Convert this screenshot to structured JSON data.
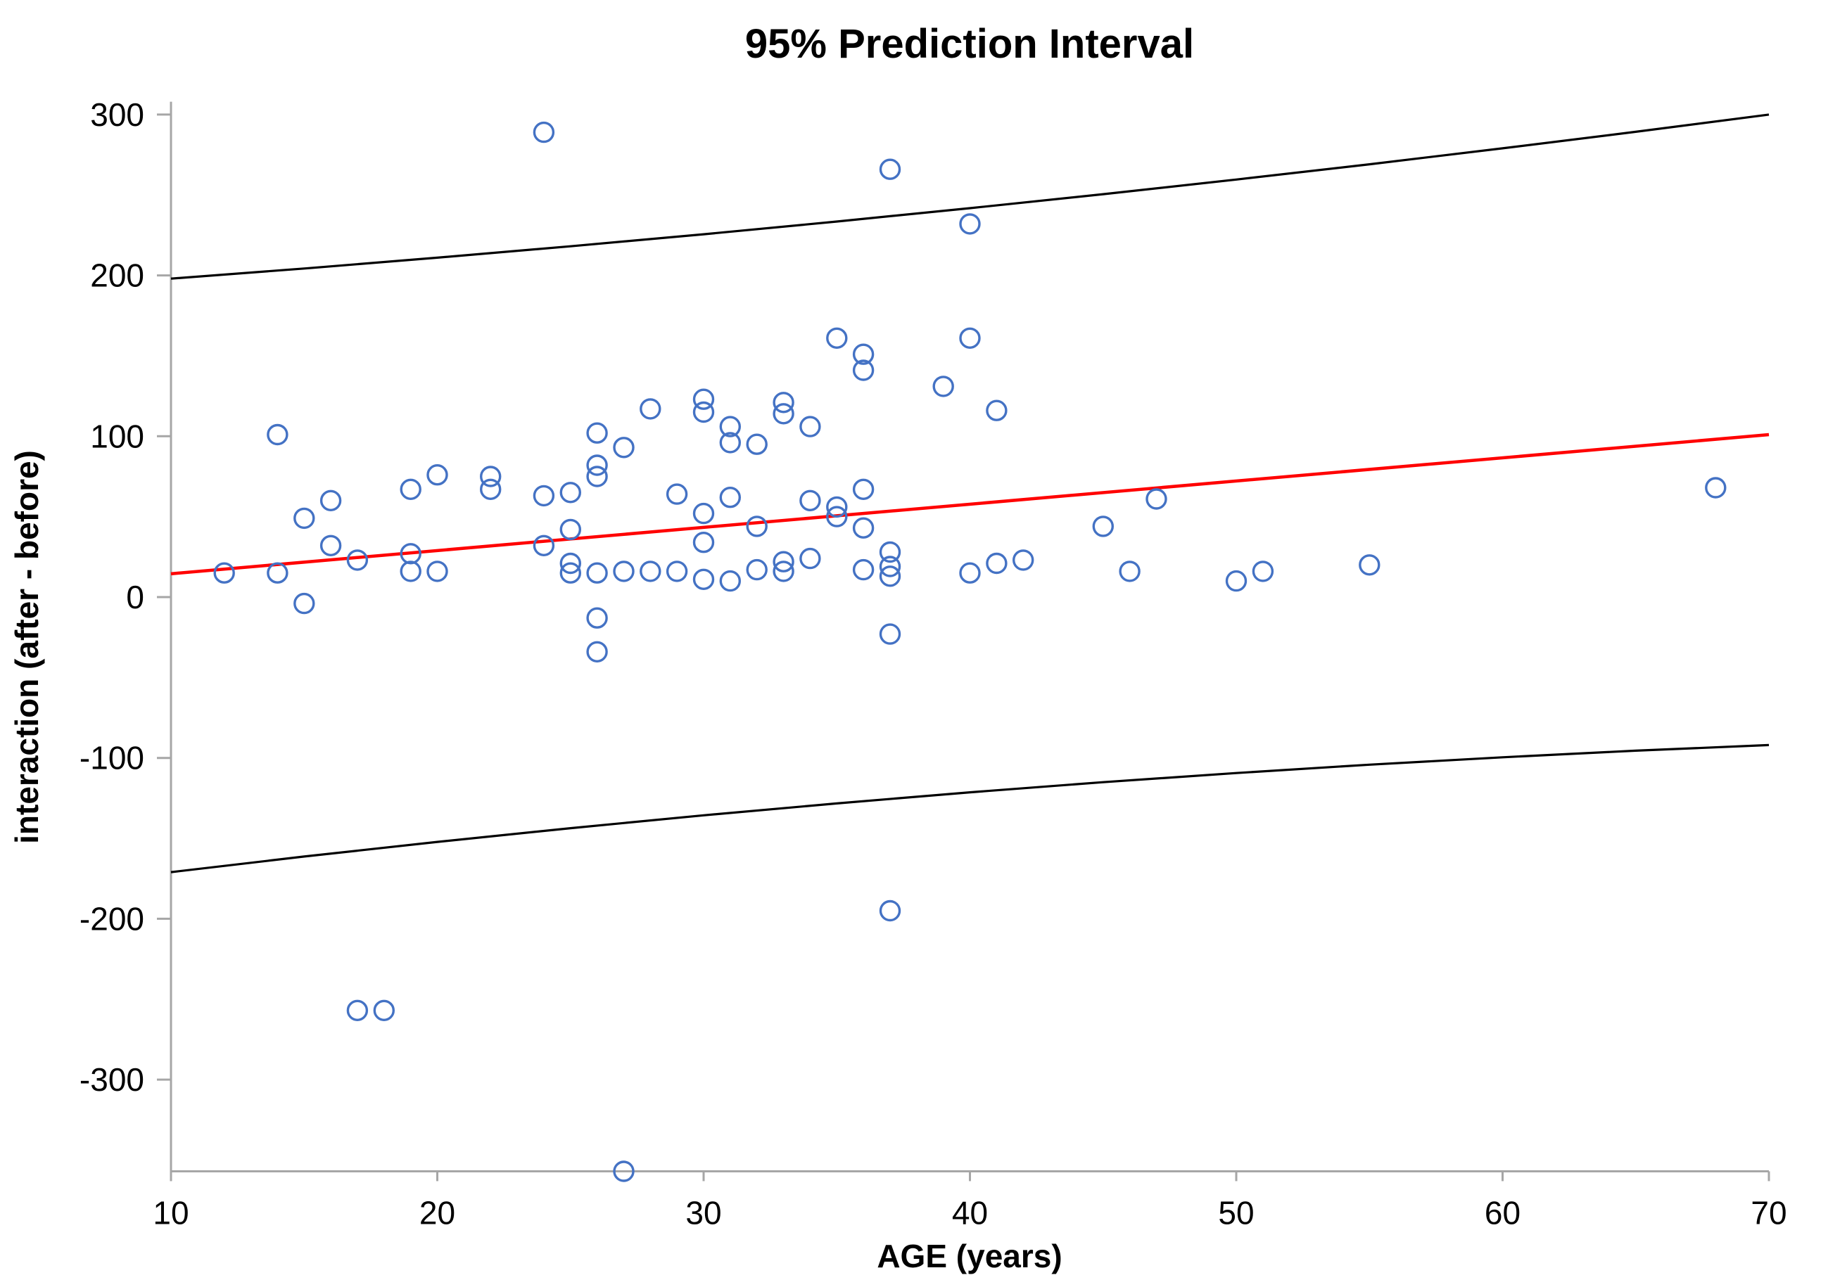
{
  "chart_data": {
    "type": "scatter",
    "title": "95% Prediction Interval",
    "xlabel": "AGE (years)",
    "ylabel": "interaction (after - before)",
    "xlim": [
      10,
      70
    ],
    "ylim": [
      -357,
      310
    ],
    "x_ticks": [
      10,
      20,
      30,
      40,
      50,
      60,
      70
    ],
    "y_ticks": [
      300,
      200,
      100,
      0,
      -100,
      -200,
      -300
    ],
    "grid": false,
    "legend": "none",
    "marker": {
      "shape": "open-circle",
      "color": "#4472C4"
    },
    "axis_color": "#A6A6A6",
    "points": [
      [
        12,
        15
      ],
      [
        14,
        101
      ],
      [
        14,
        15
      ],
      [
        15,
        49
      ],
      [
        15,
        -4
      ],
      [
        16,
        60
      ],
      [
        16,
        32
      ],
      [
        17,
        23
      ],
      [
        17,
        -257
      ],
      [
        18,
        -257
      ],
      [
        19,
        67
      ],
      [
        19,
        27
      ],
      [
        19,
        16
      ],
      [
        20,
        76
      ],
      [
        20,
        16
      ],
      [
        22,
        75
      ],
      [
        22,
        67
      ],
      [
        24,
        289
      ],
      [
        24,
        63
      ],
      [
        24,
        32
      ],
      [
        25,
        65
      ],
      [
        25,
        42
      ],
      [
        25,
        21
      ],
      [
        25,
        15
      ],
      [
        26,
        102
      ],
      [
        26,
        82
      ],
      [
        26,
        75
      ],
      [
        26,
        15
      ],
      [
        26,
        -13
      ],
      [
        26,
        -34
      ],
      [
        27,
        93
      ],
      [
        27,
        16
      ],
      [
        27,
        -357
      ],
      [
        28,
        117
      ],
      [
        28,
        16
      ],
      [
        29,
        64
      ],
      [
        29,
        16
      ],
      [
        30,
        123
      ],
      [
        30,
        115
      ],
      [
        30,
        52
      ],
      [
        30,
        34
      ],
      [
        30,
        11
      ],
      [
        31,
        106
      ],
      [
        31,
        96
      ],
      [
        31,
        62
      ],
      [
        31,
        10
      ],
      [
        32,
        95
      ],
      [
        32,
        44
      ],
      [
        32,
        17
      ],
      [
        33,
        121
      ],
      [
        33,
        114
      ],
      [
        33,
        22
      ],
      [
        33,
        16
      ],
      [
        34,
        106
      ],
      [
        34,
        60
      ],
      [
        34,
        24
      ],
      [
        35,
        161
      ],
      [
        35,
        56
      ],
      [
        35,
        50
      ],
      [
        36,
        151
      ],
      [
        36,
        141
      ],
      [
        36,
        67
      ],
      [
        36,
        43
      ],
      [
        36,
        17
      ],
      [
        37,
        266
      ],
      [
        37,
        28
      ],
      [
        37,
        19
      ],
      [
        37,
        13
      ],
      [
        37,
        -23
      ],
      [
        37,
        -195
      ],
      [
        39,
        131
      ],
      [
        40,
        232
      ],
      [
        40,
        161
      ],
      [
        40,
        15
      ],
      [
        41,
        116
      ],
      [
        41,
        21
      ],
      [
        42,
        23
      ],
      [
        45,
        44
      ],
      [
        46,
        16
      ],
      [
        47,
        61
      ],
      [
        50,
        10
      ],
      [
        51,
        16
      ],
      [
        55,
        20
      ],
      [
        68,
        68
      ]
    ],
    "regression_line": {
      "color": "#FF0000",
      "points": [
        [
          10,
          14.5
        ],
        [
          70,
          101
        ]
      ]
    },
    "upper_band": {
      "color": "#000000",
      "points": [
        [
          10,
          198
        ],
        [
          15,
          204.3
        ],
        [
          20,
          211
        ],
        [
          25,
          218.1
        ],
        [
          30,
          225.6
        ],
        [
          35,
          233.5
        ],
        [
          40,
          241.8
        ],
        [
          45,
          250.5
        ],
        [
          50,
          259.6
        ],
        [
          55,
          269.1
        ],
        [
          60,
          279.0
        ],
        [
          65,
          289.3
        ],
        [
          70,
          300
        ]
      ]
    },
    "lower_band": {
      "color": "#000000",
      "points": [
        [
          10,
          -171
        ],
        [
          15,
          -161.3
        ],
        [
          20,
          -152.2
        ],
        [
          25,
          -143.7
        ],
        [
          30,
          -135.7
        ],
        [
          35,
          -128.3
        ],
        [
          40,
          -121.4
        ],
        [
          45,
          -115.1
        ],
        [
          50,
          -109.4
        ],
        [
          55,
          -104.2
        ],
        [
          60,
          -99.6
        ],
        [
          65,
          -95.5
        ],
        [
          70,
          -92
        ]
      ]
    }
  }
}
